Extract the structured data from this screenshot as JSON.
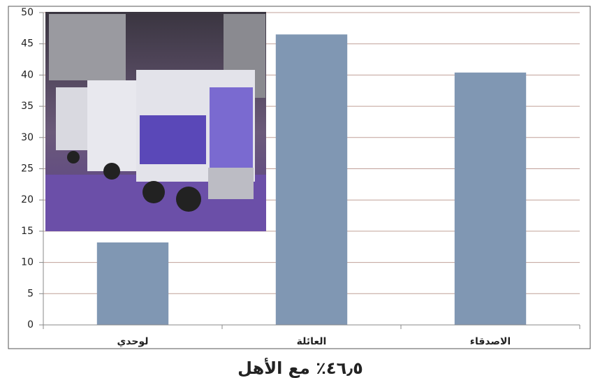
{
  "chart_data": {
    "type": "bar",
    "categories": [
      "لوحدي",
      "العائلة",
      "الاصدقاء"
    ],
    "values": [
      13.2,
      46.5,
      40.4
    ],
    "color": "#8097b3",
    "ylim": [
      0,
      50
    ],
    "yticks": [
      0,
      5,
      10,
      15,
      20,
      25,
      30,
      35,
      40,
      45,
      50
    ],
    "grid": true,
    "caption": "٤٦٫٥٪ مع الأهل"
  }
}
